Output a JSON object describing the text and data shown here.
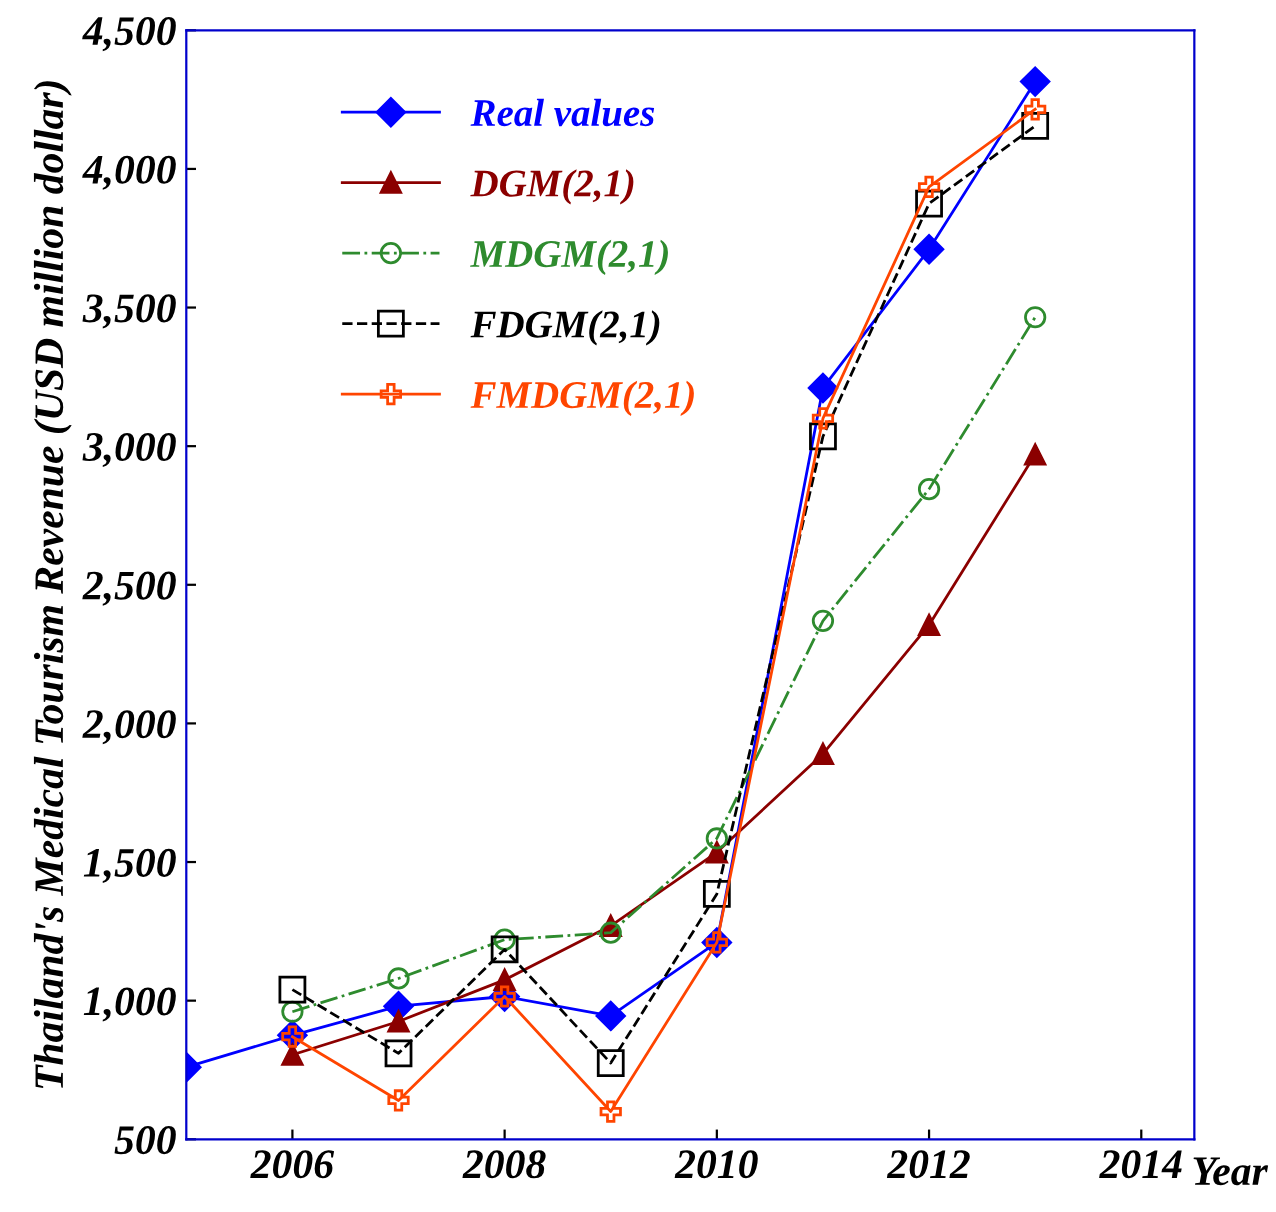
{
  "chart_data": {
    "type": "line",
    "xlabel": "Year",
    "ylabel": "Thailand's Medical Tourism Revenue (USD million dollar)",
    "series": [
      {
        "name": "Real values",
        "color": "#0000ff",
        "marker": "diamond",
        "line_style": "solid",
        "x": [
          2005,
          2006,
          2007,
          2008,
          2009,
          2010,
          2011,
          2012,
          2013
        ],
        "values": [
          760,
          875,
          980,
          1015,
          945,
          1210,
          3210,
          3710,
          4315
        ]
      },
      {
        "name": "DGM(2,1)",
        "color": "#8b0000",
        "marker": "triangle",
        "line_style": "solid",
        "x": [
          2006,
          2007,
          2008,
          2009,
          2010,
          2011,
          2012,
          2013
        ],
        "values": [
          805,
          925,
          1075,
          1270,
          1535,
          1890,
          2355,
          2970
        ]
      },
      {
        "name": "MDGM(2,1)",
        "color": "#2e8b2e",
        "marker": "circle",
        "line_style": "dashdot",
        "x": [
          2006,
          2007,
          2008,
          2009,
          2010,
          2011,
          2012,
          2013
        ],
        "values": [
          960,
          1080,
          1220,
          1245,
          1585,
          2370,
          2845,
          3465
        ]
      },
      {
        "name": "FDGM(2,1)",
        "color": "#000000",
        "marker": "square",
        "line_style": "dashed",
        "x": [
          2006,
          2007,
          2008,
          2009,
          2010,
          2011,
          2012,
          2013
        ],
        "values": [
          1040,
          810,
          1185,
          775,
          1385,
          3035,
          3875,
          4155
        ]
      },
      {
        "name": "FMDGM(2,1)",
        "color": "#ff4500",
        "marker": "cross",
        "line_style": "solid",
        "x": [
          2006,
          2007,
          2008,
          2009,
          2010,
          2011,
          2012,
          2013
        ],
        "values": [
          870,
          640,
          1015,
          600,
          1210,
          3100,
          3935,
          4215
        ]
      }
    ],
    "xlim": [
      2005,
      2014.5
    ],
    "xticks": [
      2006,
      2008,
      2010,
      2012,
      2014
    ],
    "ylim": [
      500,
      4500
    ],
    "yticks": [
      {
        "value": 500,
        "label": "500"
      },
      {
        "value": 1000,
        "label": "1,000"
      },
      {
        "value": 1500,
        "label": "1,500"
      },
      {
        "value": 2000,
        "label": "2,000"
      },
      {
        "value": 2500,
        "label": "2,500"
      },
      {
        "value": 3000,
        "label": "3,000"
      },
      {
        "value": 3500,
        "label": "3,500"
      },
      {
        "value": 4000,
        "label": "4,000"
      },
      {
        "value": 4500,
        "label": "4,500"
      }
    ],
    "grid": false,
    "legend": "top left"
  }
}
